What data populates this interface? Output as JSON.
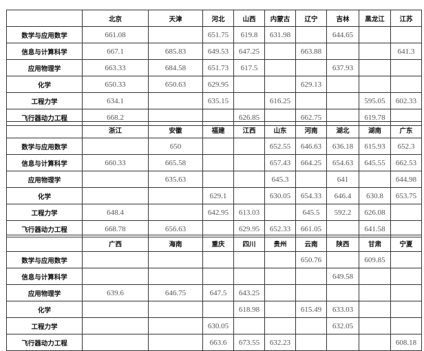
{
  "rows": [
    "数学与应用数学",
    "信息与计算科学",
    "应用物理学",
    "化学",
    "工程力学",
    "飞行器动力工程"
  ],
  "tables": [
    {
      "provinces": [
        "北京",
        "天津",
        "河北",
        "山西",
        "内蒙古",
        "辽宁",
        "吉林",
        "黑龙江",
        "江苏"
      ],
      "values": [
        [
          "661.08",
          "",
          "651.75",
          "619.8",
          "631.98",
          "",
          "644.65",
          "",
          ""
        ],
        [
          "667.1",
          "685.83",
          "649.53",
          "647.25",
          "",
          "663.88",
          "",
          "",
          "641.3"
        ],
        [
          "663.33",
          "684.58",
          "651.73",
          "617.5",
          "",
          "",
          "637.93",
          "",
          ""
        ],
        [
          "650.33",
          "650.63",
          "629.95",
          "",
          "",
          "629.13",
          "",
          "",
          ""
        ],
        [
          "634.1",
          "",
          "635.15",
          "",
          "616.25",
          "",
          "",
          "595.05",
          "602.33"
        ],
        [
          "668.2",
          "",
          "",
          "626.85",
          "",
          "662.75",
          "",
          "619.78",
          ""
        ]
      ]
    },
    {
      "provinces": [
        "浙江",
        "安徽",
        "福建",
        "江西",
        "山东",
        "河南",
        "湖北",
        "湖南",
        "广东"
      ],
      "values": [
        [
          "",
          "650",
          "",
          "",
          "652.55",
          "646.63",
          "636.18",
          "615.93",
          "652.3"
        ],
        [
          "660.33",
          "665.58",
          "",
          "",
          "657.43",
          "664.25",
          "654.63",
          "645.55",
          "662.53"
        ],
        [
          "",
          "635.63",
          "",
          "",
          "645.3",
          "",
          "641",
          "",
          "644.98"
        ],
        [
          "",
          "",
          "629.1",
          "",
          "630.05",
          "654.33",
          "646.4",
          "630.8",
          "653.75"
        ],
        [
          "648.4",
          "",
          "642.95",
          "613.03",
          "",
          "645.5",
          "592.2",
          "626.08",
          ""
        ],
        [
          "668.78",
          "656.63",
          "",
          "629.95",
          "652.33",
          "661.05",
          "",
          "641.58",
          ""
        ]
      ]
    },
    {
      "provinces": [
        "广西",
        "海南",
        "重庆",
        "四川",
        "贵州",
        "云南",
        "陕西",
        "甘肃",
        "宁夏"
      ],
      "values": [
        [
          "",
          "",
          "",
          "",
          "",
          "650.76",
          "",
          "609.85",
          ""
        ],
        [
          "",
          "",
          "",
          "",
          "",
          "",
          "649.58",
          "",
          ""
        ],
        [
          "639.6",
          "646.75",
          "647.5",
          "643.25",
          "",
          "",
          "",
          "",
          ""
        ],
        [
          "",
          "",
          "",
          "618.98",
          "",
          "615.49",
          "633.03",
          "",
          ""
        ],
        [
          "",
          "",
          "630.05",
          "",
          "",
          "",
          "632.05",
          "",
          ""
        ],
        [
          "",
          "",
          "663.6",
          "673.55",
          "632.23",
          "",
          "",
          "",
          "608.18"
        ]
      ]
    }
  ]
}
